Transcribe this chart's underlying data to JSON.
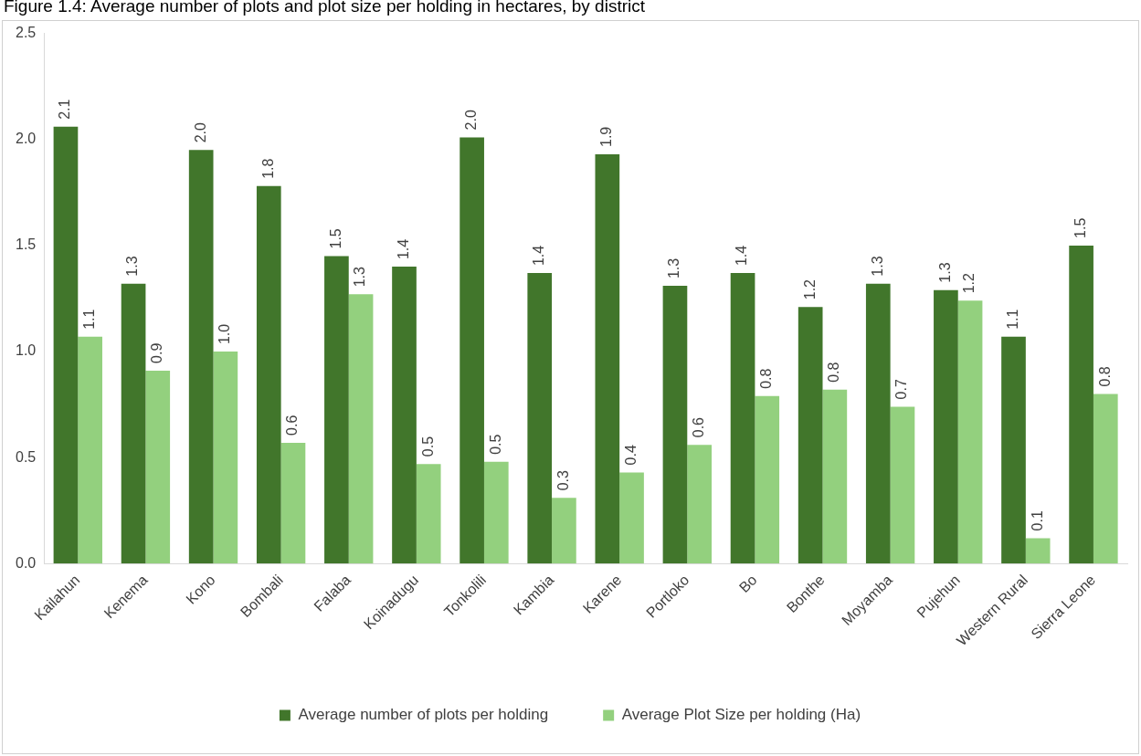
{
  "chart_data": {
    "type": "bar",
    "title": "Figure 1.4: Average number of plots and plot size per holding in hectares, by district",
    "categories": [
      "Kailahun",
      "Kenema",
      "Kono",
      "Bombali",
      "Falaba",
      "Koinadugu",
      "Tonkolili",
      "Kambia",
      "Karene",
      "Portloko",
      "Bo",
      "Bonthe",
      "Moyamba",
      "Pujehun",
      "Western Rural",
      "Sierra Leone"
    ],
    "series": [
      {
        "name": "Average number of plots per holding",
        "color": "#41762b",
        "values": [
          2.06,
          1.32,
          1.95,
          1.78,
          1.45,
          1.4,
          2.01,
          1.37,
          1.93,
          1.31,
          1.37,
          1.21,
          1.32,
          1.29,
          1.07,
          1.5
        ],
        "value_labels": [
          "2.1",
          "1.3",
          "2.0",
          "1.8",
          "1.5",
          "1.4",
          "2.0",
          "1.4",
          "1.9",
          "1.3",
          "1.4",
          "1.2",
          "1.3",
          "1.3",
          "1.1",
          "1.5"
        ]
      },
      {
        "name": "Average Plot Size per holding (Ha)",
        "color": "#93d07e",
        "values": [
          1.07,
          0.91,
          1.0,
          0.57,
          1.27,
          0.47,
          0.48,
          0.31,
          0.43,
          0.56,
          0.79,
          0.82,
          0.74,
          1.24,
          0.12,
          0.8
        ],
        "value_labels": [
          "1.1",
          "0.9",
          "1.0",
          "0.6",
          "1.3",
          "0.5",
          "0.5",
          "0.3",
          "0.4",
          "0.6",
          "0.8",
          "0.8",
          "0.7",
          "1.2",
          "0.1",
          "0.8"
        ]
      }
    ],
    "ylim": [
      0,
      2.5
    ],
    "yticks": [
      {
        "value": 0,
        "label": "0.0"
      },
      {
        "value": 0.5,
        "label": "0.5"
      },
      {
        "value": 1,
        "label": "1.0"
      },
      {
        "value": 1.5,
        "label": "1.5"
      },
      {
        "value": 2,
        "label": "2.0"
      },
      {
        "value": 2.5,
        "label": "2.5"
      }
    ],
    "grid": false,
    "legend": "bottom"
  }
}
